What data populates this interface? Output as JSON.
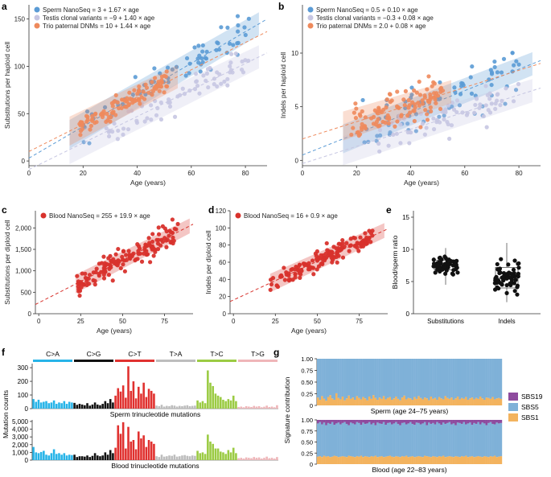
{
  "colors": {
    "sperm": "#5b9bd5",
    "testis": "#c6c6e2",
    "trio": "#ee8a5c",
    "blood": "#d8322c",
    "c_a": "#27b4e8",
    "c_g": "#111111",
    "c_t": "#e0312f",
    "t_a": "#bdbdbd",
    "t_c": "#9bcb43",
    "t_g": "#efb6b9",
    "sbs19": "#8e4b9e",
    "sbs5": "#7fb1d8",
    "sbs1": "#f3b35e"
  },
  "chart_data": [
    {
      "panel": "a",
      "type": "scatter",
      "xlabel": "Age (years)",
      "ylabel": "Substitutions per haploid cell",
      "xlim": [
        0,
        88
      ],
      "ylim": [
        -5,
        165
      ],
      "xticks": [
        "0",
        "20",
        "40",
        "60",
        "80"
      ],
      "yticks": [
        "0",
        "50",
        "100",
        "150"
      ],
      "legend_placement": "top-left",
      "series": [
        {
          "name": "Sperm NanoSeq = 3 + 1.67 × age",
          "intercept": 3,
          "slope": 1.67,
          "band": [
            15,
            85
          ],
          "x_range": [
            20,
            82
          ]
        },
        {
          "name": "Testis clonal variants = −9 + 1.40 × age",
          "intercept": -9,
          "slope": 1.4,
          "band": [
            15,
            85
          ],
          "x_range": [
            28,
            82
          ]
        },
        {
          "name": "Trio paternal DNMs = 10 + 1.44 × age",
          "intercept": 10,
          "slope": 1.44,
          "band": [
            15,
            55
          ],
          "x_range": [
            18,
            52
          ]
        }
      ]
    },
    {
      "panel": "b",
      "type": "scatter",
      "xlabel": "Age (years)",
      "ylabel": "Indels per haploid cell",
      "xlim": [
        0,
        88
      ],
      "ylim": [
        -0.5,
        14.5
      ],
      "xticks": [
        "0",
        "20",
        "40",
        "60",
        "80"
      ],
      "yticks": [
        "0",
        "5",
        "10"
      ],
      "legend_placement": "top-left",
      "series": [
        {
          "name": "Sperm NanoSeq = 0.5 + 0.10 × age",
          "intercept": 0.5,
          "slope": 0.1,
          "band": [
            15,
            85
          ],
          "x_range": [
            22,
            80
          ]
        },
        {
          "name": "Testis clonal variants = −0.3 + 0.08 × age",
          "intercept": -0.3,
          "slope": 0.08,
          "band": [
            15,
            85
          ],
          "x_range": [
            28,
            82
          ]
        },
        {
          "name": "Trio paternal DNMs = 2.0 + 0.08 × age",
          "intercept": 2.0,
          "slope": 0.08,
          "band": [
            15,
            55
          ],
          "x_range": [
            18,
            52
          ]
        }
      ]
    },
    {
      "panel": "c",
      "type": "scatter",
      "xlabel": "Age (years)",
      "ylabel": "Substitutions per diploid cell",
      "xlim": [
        -2,
        92
      ],
      "ylim": [
        0,
        2400
      ],
      "xticks": [
        "0",
        "25",
        "50",
        "75"
      ],
      "yticks": [
        "0",
        "500",
        "1,000",
        "1,500",
        "2,000"
      ],
      "legend_placement": "top-left",
      "series": [
        {
          "name": "Blood NanoSeq = 255 + 19.9 × age",
          "intercept": 255,
          "slope": 19.9,
          "band": [
            22,
            90
          ],
          "x_range": [
            22,
            83
          ]
        }
      ]
    },
    {
      "panel": "d",
      "type": "scatter",
      "xlabel": "Age (years)",
      "ylabel": "Indels per diploid cell",
      "xlim": [
        -2,
        92
      ],
      "ylim": [
        0,
        120
      ],
      "xticks": [
        "0",
        "25",
        "50",
        "75"
      ],
      "yticks": [
        "0",
        "20",
        "40",
        "60",
        "80",
        "100",
        "120"
      ],
      "legend_placement": "top-left",
      "series": [
        {
          "name": "Blood NanoSeq = 16 + 0.9 × age",
          "intercept": 16,
          "slope": 0.9,
          "band": [
            22,
            90
          ],
          "x_range": [
            22,
            83
          ]
        }
      ]
    },
    {
      "panel": "e",
      "type": "box",
      "ylabel": "Blood/sperm ratio",
      "ylim": [
        0,
        16
      ],
      "yticks": [
        "0",
        "5",
        "10",
        "15"
      ],
      "categories": [
        "Substitutions",
        "Indels"
      ],
      "boxes": [
        {
          "q1": 6.8,
          "median": 7.5,
          "q3": 8.3,
          "whisker_low": 4.5,
          "whisker_high": 10.2,
          "n": 60,
          "spread": 1.3
        },
        {
          "q1": 4.0,
          "median": 5.5,
          "q3": 7.2,
          "whisker_low": 1.8,
          "whisker_high": 11.0,
          "n": 60,
          "spread": 2.3
        }
      ]
    },
    {
      "panel": "f",
      "type": "bar",
      "ylabel": "Mutation counts",
      "groups": [
        "C>A",
        "C>G",
        "C>T",
        "T>A",
        "T>C",
        "T>G"
      ],
      "subplots": [
        {
          "label": "Sperm trinucleotide mutations",
          "ylim": [
            0,
            330
          ],
          "yticks": [
            "0",
            "100",
            "200",
            "300"
          ],
          "values": [
            70,
            50,
            65,
            45,
            50,
            55,
            40,
            45,
            60,
            35,
            45,
            40,
            55,
            35,
            50,
            45,
            42,
            28,
            35,
            30,
            25,
            40,
            22,
            30,
            45,
            30,
            25,
            35,
            55,
            40,
            70,
            45,
            95,
            150,
            125,
            170,
            80,
            310,
            130,
            200,
            75,
            160,
            110,
            190,
            85,
            145,
            130,
            110,
            22,
            18,
            28,
            15,
            20,
            18,
            25,
            22,
            15,
            20,
            18,
            22,
            25,
            18,
            20,
            22,
            60,
            45,
            55,
            40,
            280,
            190,
            165,
            110,
            95,
            85,
            65,
            55,
            70,
            60,
            95,
            55,
            12,
            15,
            10,
            18,
            15,
            12,
            20,
            15,
            18,
            10,
            14,
            22,
            12,
            15,
            10,
            25
          ]
        },
        {
          "label": "Blood trinucleotide mutations",
          "ylim": [
            0,
            5200
          ],
          "yticks": [
            "0",
            "1,000",
            "2,000",
            "3,000",
            "4,000",
            "5,000"
          ],
          "values": [
            1700,
            1000,
            900,
            1050,
            1200,
            700,
            600,
            900,
            1400,
            800,
            900,
            700,
            900,
            600,
            700,
            650,
            700,
            400,
            500,
            500,
            450,
            600,
            400,
            550,
            900,
            600,
            500,
            600,
            1000,
            700,
            1300,
            900,
            1600,
            4500,
            3400,
            4900,
            1500,
            4300,
            2400,
            2600,
            1400,
            3700,
            2800,
            3200,
            1700,
            2600,
            2400,
            2100,
            500,
            400,
            700,
            450,
            500,
            600,
            550,
            700,
            450,
            500,
            600,
            650,
            550,
            500,
            600,
            550,
            1200,
            900,
            1000,
            800,
            3300,
            2400,
            2100,
            1500,
            1500,
            1100,
            1000,
            800,
            1300,
            1000,
            1600,
            900,
            250,
            300,
            200,
            350,
            300,
            250,
            400,
            300,
            350,
            200,
            300,
            450,
            250,
            300,
            200,
            400
          ]
        }
      ]
    },
    {
      "panel": "g",
      "type": "bar",
      "stacked": true,
      "ylabel": "Signature contribution",
      "ylim": [
        0,
        1
      ],
      "yticks": [
        "0",
        "0.25",
        "0.50",
        "0.75",
        "1.00"
      ],
      "legend_placement": "right",
      "series_names": [
        "SBS19",
        "SBS5",
        "SBS1"
      ],
      "subplots": [
        {
          "label": "Sperm (age 24–75 years)",
          "sbs1": [
            0.17,
            0.12,
            0.2,
            0.14,
            0.1,
            0.18,
            0.22,
            0.15,
            0.12,
            0.26,
            0.16,
            0.13,
            0.19,
            0.11,
            0.15,
            0.21,
            0.14,
            0.17,
            0.12,
            0.2,
            0.16,
            0.13,
            0.18,
            0.15,
            0.11,
            0.19,
            0.14,
            0.22,
            0.16,
            0.12,
            0.17,
            0.14,
            0.2,
            0.13,
            0.16,
            0.18,
            0.12,
            0.15,
            0.19,
            0.14,
            0.11,
            0.17,
            0.21,
            0.13,
            0.16,
            0.15,
            0.12,
            0.18,
            0.14,
            0.2,
            0.16,
            0.13,
            0.17,
            0.15,
            0.11,
            0.19,
            0.14,
            0.16,
            0.12,
            0.18,
            0.15,
            0.13,
            0.2,
            0.16,
            0.14,
            0.17,
            0.12,
            0.15,
            0.19,
            0.13,
            0.16,
            0.14,
            0.18,
            0.12,
            0.15,
            0.17,
            0.13,
            0.16,
            0.14,
            0.19,
            0.15,
            0.12,
            0.17,
            0.16,
            0.14,
            0.18,
            0.13,
            0.15,
            0.16,
            0.14
          ],
          "sbs19": []
        },
        {
          "label": "Blood (age 22–83 years)",
          "sbs1": [
            0.17,
            0.18,
            0.16,
            0.19,
            0.17,
            0.18,
            0.16,
            0.17,
            0.19,
            0.18,
            0.16,
            0.17,
            0.18,
            0.17,
            0.16,
            0.19,
            0.18,
            0.17,
            0.16,
            0.18,
            0.17,
            0.19,
            0.16,
            0.18,
            0.17,
            0.16,
            0.18,
            0.17,
            0.19,
            0.16,
            0.17,
            0.18,
            0.16,
            0.17,
            0.18,
            0.19,
            0.17,
            0.16,
            0.18,
            0.17,
            0.16,
            0.18,
            0.17,
            0.19,
            0.16,
            0.17,
            0.18,
            0.16,
            0.17,
            0.18,
            0.17,
            0.16,
            0.19,
            0.18,
            0.17,
            0.16,
            0.18,
            0.17,
            0.16,
            0.18,
            0.17,
            0.19,
            0.16,
            0.17,
            0.18,
            0.17,
            0.16,
            0.18,
            0.17,
            0.16,
            0.18,
            0.17,
            0.19,
            0.16,
            0.17,
            0.18,
            0.16,
            0.17,
            0.18,
            0.17,
            0.16,
            0.18,
            0.17,
            0.16,
            0.18,
            0.17,
            0.19,
            0.16,
            0.17,
            0.18
          ],
          "sbs19": [
            0.08,
            0.05,
            0.1,
            0.06,
            0.12,
            0.07,
            0.09,
            0.05,
            0.11,
            0.08,
            0.06,
            0.1,
            0.07,
            0.05,
            0.09,
            0.12,
            0.06,
            0.08,
            0.1,
            0.05,
            0.07,
            0.11,
            0.06,
            0.09,
            0.08,
            0.05,
            0.1,
            0.07,
            0.12,
            0.06,
            0.08,
            0.09,
            0.05,
            0.11,
            0.07,
            0.06,
            0.1,
            0.08,
            0.05,
            0.09,
            0.12,
            0.07,
            0.06,
            0.1,
            0.08,
            0.05,
            0.09,
            0.11,
            0.06,
            0.07,
            0.1,
            0.08,
            0.05,
            0.12,
            0.06,
            0.09,
            0.07,
            0.1,
            0.05,
            0.08,
            0.11,
            0.06,
            0.09,
            0.07,
            0.05,
            0.1,
            0.08,
            0.12,
            0.06,
            0.07,
            0.09,
            0.05,
            0.1,
            0.08,
            0.06,
            0.11,
            0.07,
            0.09,
            0.05,
            0.1,
            0.06,
            0.08,
            0.12,
            0.07,
            0.05,
            0.09,
            0.1,
            0.06,
            0.08,
            0.07
          ]
        }
      ]
    }
  ],
  "panels": {
    "a": "a",
    "b": "b",
    "c": "c",
    "d": "d",
    "e": "e",
    "f": "f",
    "g": "g"
  }
}
